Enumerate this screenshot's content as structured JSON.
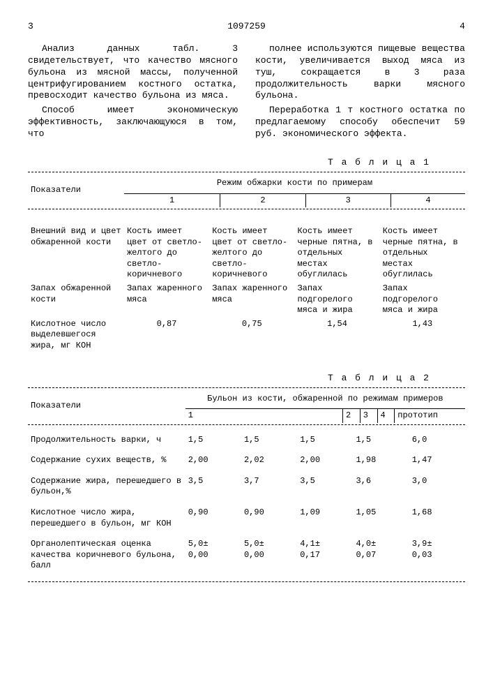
{
  "header": {
    "page_left": "3",
    "doc_number": "1097259",
    "page_right": "4"
  },
  "body": {
    "left_p1": "Анализ данных табл. 3 свидетельствует, что качество мясного бульона из мясной массы, полученной центрифугированием костного остатка, превосходит качество бульона из мяса.",
    "left_p2": "Способ имеет экономическую эффективность, заключающуюся в том, что",
    "right_p1": "полнее используются пищевые вещества кости, увеличивается выход мяса из туш, сокращается в 3 раза продолжительность варки мясного бульона.",
    "right_p2": "Переработка 1 т костного остатка по предлагаемому способу обеспечит 59 руб. экономического эффекта."
  },
  "table1": {
    "title": "Т а б л и ц а  1",
    "col_header_main": "Показатели",
    "col_header_group": "Режим обжарки кости по примерам",
    "cols": [
      "1",
      "2",
      "3",
      "4"
    ],
    "rows": [
      {
        "label": "Внешний вид и цвет обжаренной кости",
        "c1": "Кость имеет цвет от светло-желтого до светло-коричневого",
        "c2": "Кость имеет цвет от светло-желтого до светло-коричневого",
        "c3": "Кость имеет черные пятна, в отдельных местах обуглилась",
        "c4": "Кость имеет черные пятна, в отдельных местах обуглилась"
      },
      {
        "label": "Запах обжаренной кости",
        "c1": "Запах жаренного мяса",
        "c2": "Запах жаренного мяса",
        "c3": "Запах подгорелого мяса и жира",
        "c4": "Запах подгорелого мяса и жира"
      },
      {
        "label": "Кислотное число выделевшегося жира, мг КОН",
        "c1": "0,87",
        "c2": "0,75",
        "c3": "1,54",
        "c4": "1,43"
      }
    ]
  },
  "table2": {
    "title": "Т а б л и ц а  2",
    "col_header_main": "Показатели",
    "col_header_group": "Бульон из кости, обжаренной по режимам примеров",
    "cols": [
      "1",
      "2",
      "3",
      "4",
      "прототип"
    ],
    "rows": [
      {
        "label": "Продолжительность варки, ч",
        "v": [
          "1,5",
          "1,5",
          "1,5",
          "1,5",
          "6,0"
        ]
      },
      {
        "label": "Содержание сухих веществ, %",
        "v": [
          "2,00",
          "2,02",
          "2,00",
          "1,98",
          "1,47"
        ]
      },
      {
        "label": "Содержание жира, перешедшего в бульон,%",
        "v": [
          "3,5",
          "3,7",
          "3,5",
          "3,6",
          "3,0"
        ]
      },
      {
        "label": "Кислотное число жира, перешедшего в бульон, мг КОН",
        "v": [
          "0,90",
          "0,90",
          "1,09",
          "1,05",
          "1,68"
        ]
      },
      {
        "label": "Органолептическая оценка качества коричневого бульона, балл",
        "v": [
          "5,0±\n0,00",
          "5,0±\n0,00",
          "4,1±\n0,17",
          "4,0±\n0,07",
          "3,9±\n0,03"
        ]
      }
    ]
  }
}
